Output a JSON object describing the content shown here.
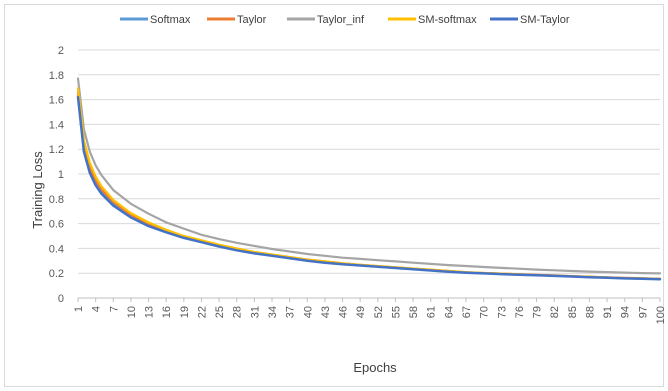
{
  "chart_data": {
    "type": "line",
    "xlabel": "Epochs",
    "ylabel": "Training Loss",
    "ylim": [
      0,
      2
    ],
    "yticks": [
      "0",
      "0.2",
      "0.4",
      "0.6",
      "0.8",
      "1",
      "1.2",
      "1.4",
      "1.6",
      "1.8",
      "2"
    ],
    "x_range": [
      1,
      100
    ],
    "xticks": [
      "1",
      "4",
      "7",
      "10",
      "13",
      "16",
      "19",
      "22",
      "25",
      "28",
      "31",
      "34",
      "37",
      "40",
      "43",
      "46",
      "49",
      "52",
      "55",
      "58",
      "61",
      "64",
      "67",
      "70",
      "73",
      "76",
      "79",
      "82",
      "85",
      "88",
      "91",
      "94",
      "97",
      "100"
    ],
    "grid": "horizontal",
    "legend_position": "top",
    "series": [
      {
        "name": "Softmax",
        "color": "#5B9BD5",
        "points": [
          [
            1,
            1.63
          ],
          [
            2,
            1.2
          ],
          [
            3,
            1.03
          ],
          [
            4,
            0.93
          ],
          [
            5,
            0.86
          ],
          [
            7,
            0.76
          ],
          [
            10,
            0.66
          ],
          [
            13,
            0.59
          ],
          [
            16,
            0.54
          ],
          [
            19,
            0.49
          ],
          [
            22,
            0.455
          ],
          [
            25,
            0.42
          ],
          [
            28,
            0.39
          ],
          [
            31,
            0.365
          ],
          [
            34,
            0.345
          ],
          [
            37,
            0.325
          ],
          [
            40,
            0.305
          ],
          [
            43,
            0.29
          ],
          [
            46,
            0.275
          ],
          [
            49,
            0.265
          ],
          [
            52,
            0.255
          ],
          [
            55,
            0.245
          ],
          [
            58,
            0.235
          ],
          [
            61,
            0.225
          ],
          [
            64,
            0.215
          ],
          [
            67,
            0.205
          ],
          [
            70,
            0.2
          ],
          [
            73,
            0.195
          ],
          [
            76,
            0.19
          ],
          [
            79,
            0.185
          ],
          [
            82,
            0.18
          ],
          [
            85,
            0.175
          ],
          [
            88,
            0.17
          ],
          [
            91,
            0.165
          ],
          [
            94,
            0.16
          ],
          [
            97,
            0.158
          ],
          [
            100,
            0.155
          ]
        ]
      },
      {
        "name": "Taylor",
        "color": "#ED7D31",
        "points": [
          [
            1,
            1.66
          ],
          [
            2,
            1.22
          ],
          [
            3,
            1.05
          ],
          [
            4,
            0.95
          ],
          [
            5,
            0.875
          ],
          [
            7,
            0.775
          ],
          [
            10,
            0.67
          ],
          [
            13,
            0.6
          ],
          [
            16,
            0.545
          ],
          [
            19,
            0.495
          ],
          [
            22,
            0.46
          ],
          [
            25,
            0.425
          ],
          [
            28,
            0.395
          ],
          [
            31,
            0.37
          ],
          [
            34,
            0.35
          ],
          [
            37,
            0.33
          ],
          [
            40,
            0.31
          ],
          [
            43,
            0.295
          ],
          [
            46,
            0.28
          ],
          [
            49,
            0.268
          ],
          [
            52,
            0.257
          ],
          [
            55,
            0.247
          ],
          [
            58,
            0.237
          ],
          [
            61,
            0.228
          ],
          [
            64,
            0.218
          ],
          [
            67,
            0.208
          ],
          [
            70,
            0.202
          ],
          [
            73,
            0.197
          ],
          [
            76,
            0.192
          ],
          [
            79,
            0.187
          ],
          [
            82,
            0.182
          ],
          [
            85,
            0.177
          ],
          [
            88,
            0.172
          ],
          [
            91,
            0.167
          ],
          [
            94,
            0.162
          ],
          [
            97,
            0.159
          ],
          [
            100,
            0.156
          ]
        ]
      },
      {
        "name": "Taylor_inf",
        "color": "#A5A5A5",
        "points": [
          [
            1,
            1.77
          ],
          [
            2,
            1.36
          ],
          [
            3,
            1.18
          ],
          [
            4,
            1.07
          ],
          [
            5,
            0.99
          ],
          [
            7,
            0.87
          ],
          [
            10,
            0.76
          ],
          [
            13,
            0.68
          ],
          [
            16,
            0.61
          ],
          [
            19,
            0.56
          ],
          [
            22,
            0.51
          ],
          [
            25,
            0.475
          ],
          [
            28,
            0.445
          ],
          [
            31,
            0.42
          ],
          [
            34,
            0.395
          ],
          [
            37,
            0.375
          ],
          [
            40,
            0.355
          ],
          [
            43,
            0.34
          ],
          [
            46,
            0.325
          ],
          [
            49,
            0.315
          ],
          [
            52,
            0.305
          ],
          [
            55,
            0.295
          ],
          [
            58,
            0.285
          ],
          [
            61,
            0.275
          ],
          [
            64,
            0.265
          ],
          [
            67,
            0.258
          ],
          [
            70,
            0.25
          ],
          [
            73,
            0.243
          ],
          [
            76,
            0.236
          ],
          [
            79,
            0.229
          ],
          [
            82,
            0.223
          ],
          [
            85,
            0.218
          ],
          [
            88,
            0.213
          ],
          [
            91,
            0.209
          ],
          [
            94,
            0.205
          ],
          [
            97,
            0.201
          ],
          [
            100,
            0.198
          ]
        ]
      },
      {
        "name": "SM-softmax",
        "color": "#FFC000",
        "points": [
          [
            1,
            1.69
          ],
          [
            2,
            1.27
          ],
          [
            3,
            1.09
          ],
          [
            4,
            0.98
          ],
          [
            5,
            0.9
          ],
          [
            7,
            0.79
          ],
          [
            10,
            0.685
          ],
          [
            13,
            0.61
          ],
          [
            16,
            0.55
          ],
          [
            19,
            0.5
          ],
          [
            22,
            0.465
          ],
          [
            25,
            0.43
          ],
          [
            28,
            0.4
          ],
          [
            31,
            0.372
          ],
          [
            34,
            0.35
          ],
          [
            37,
            0.33
          ],
          [
            40,
            0.31
          ],
          [
            43,
            0.295
          ],
          [
            46,
            0.28
          ],
          [
            49,
            0.268
          ],
          [
            52,
            0.257
          ],
          [
            55,
            0.247
          ],
          [
            58,
            0.237
          ],
          [
            61,
            0.228
          ],
          [
            64,
            0.218
          ],
          [
            67,
            0.208
          ],
          [
            70,
            0.202
          ],
          [
            73,
            0.197
          ],
          [
            76,
            0.19
          ],
          [
            79,
            0.185
          ],
          [
            82,
            0.18
          ],
          [
            85,
            0.175
          ],
          [
            88,
            0.17
          ],
          [
            91,
            0.165
          ],
          [
            94,
            0.16
          ],
          [
            97,
            0.157
          ],
          [
            100,
            0.154
          ]
        ]
      },
      {
        "name": "SM-Taylor",
        "color": "#4472C4",
        "points": [
          [
            1,
            1.62
          ],
          [
            2,
            1.18
          ],
          [
            3,
            1.01
          ],
          [
            4,
            0.91
          ],
          [
            5,
            0.84
          ],
          [
            7,
            0.745
          ],
          [
            10,
            0.65
          ],
          [
            13,
            0.58
          ],
          [
            16,
            0.53
          ],
          [
            19,
            0.485
          ],
          [
            22,
            0.45
          ],
          [
            25,
            0.415
          ],
          [
            28,
            0.385
          ],
          [
            31,
            0.36
          ],
          [
            34,
            0.34
          ],
          [
            37,
            0.32
          ],
          [
            40,
            0.3
          ],
          [
            43,
            0.285
          ],
          [
            46,
            0.272
          ],
          [
            49,
            0.262
          ],
          [
            52,
            0.252
          ],
          [
            55,
            0.242
          ],
          [
            58,
            0.232
          ],
          [
            61,
            0.222
          ],
          [
            64,
            0.212
          ],
          [
            67,
            0.204
          ],
          [
            70,
            0.198
          ],
          [
            73,
            0.193
          ],
          [
            76,
            0.188
          ],
          [
            79,
            0.183
          ],
          [
            82,
            0.178
          ],
          [
            85,
            0.173
          ],
          [
            88,
            0.168
          ],
          [
            91,
            0.163
          ],
          [
            94,
            0.158
          ],
          [
            97,
            0.155
          ],
          [
            100,
            0.152
          ]
        ]
      }
    ]
  }
}
